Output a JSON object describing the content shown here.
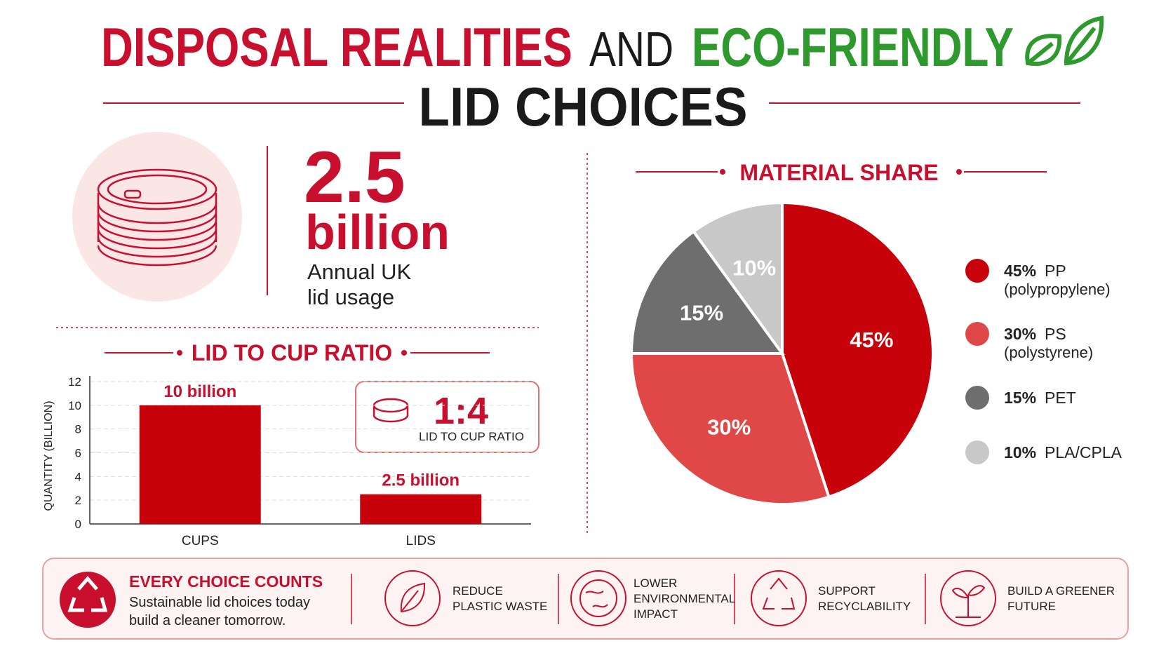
{
  "header": {
    "title_parts": [
      "DISPOSAL REALITIES",
      "AND",
      "ECO-FRIENDLY"
    ],
    "title_line2": "LID CHOICES"
  },
  "stat": {
    "value": "2.5",
    "unit": "billion",
    "label": [
      "Annual UK",
      "lid usage"
    ]
  },
  "ratio": {
    "value": "1:4",
    "label": "LID TO CUP RATIO"
  },
  "chart_data": [
    {
      "type": "bar",
      "title": "LID TO CUP RATIO",
      "ylabel": "QUANTITY (BILLION)",
      "categories": [
        "CUPS",
        "LIDS"
      ],
      "values": [
        10,
        2.5
      ],
      "value_labels": [
        "10 billion",
        "2.5 billion"
      ],
      "color": "#c8020a",
      "ylim": [
        0,
        12
      ],
      "yticks": [
        0,
        2,
        4,
        6,
        8,
        10,
        12
      ],
      "grid": true
    },
    {
      "type": "pie",
      "title": "MATERIAL SHARE",
      "categories": [
        "PP",
        "PS",
        "PET",
        "PLA/CPLA"
      ],
      "notes": [
        "(polypropylene)",
        "(polystyrene)"
      ],
      "values": [
        45,
        30,
        15,
        10
      ],
      "value_labels": [
        "45%",
        "30%",
        "15%",
        "10%"
      ],
      "colors": [
        "#c8020a",
        "#e04848",
        "#6e6e6e",
        "#c8c8c8"
      ],
      "legend": "right"
    }
  ],
  "footer": {
    "headline": "EVERY CHOICE COUNTS",
    "text": [
      "Sustainable lid choices today",
      "build a cleaner tomorrow."
    ],
    "items": [
      {
        "lines": [
          "REDUCE",
          "PLASTIC WASTE"
        ]
      },
      {
        "lines": [
          "LOWER",
          "ENVIRONMENTAL",
          "IMPACT"
        ]
      },
      {
        "lines": [
          "SUPPORT",
          "RECYCLABILITY"
        ]
      },
      {
        "lines": [
          "BUILD A GREENER",
          "FUTURE"
        ]
      }
    ]
  }
}
